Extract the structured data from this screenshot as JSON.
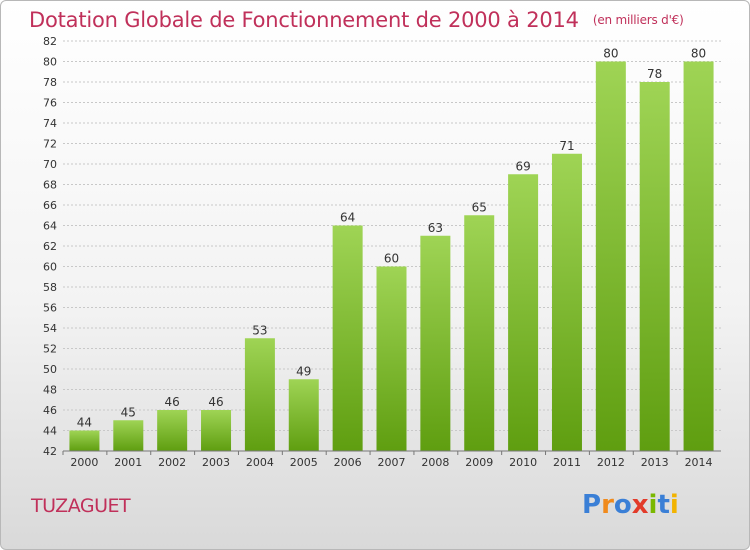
{
  "header": {
    "title": "Dotation Globale de Fonctionnement de 2000 à 2014",
    "subtitle": "(en milliers d'€)"
  },
  "footer": {
    "commune": "TUZAGUET",
    "brand": "Proxiti"
  },
  "colors": {
    "title": "#c0305a",
    "bar_top": "#9fd455",
    "bar_bottom": "#5f9e10",
    "grid": "#c8c8c8",
    "brand_letters": [
      "#3a7fd6",
      "#f08a1c",
      "#3a7fd6",
      "#e23b2a",
      "#7ab800",
      "#3a7fd6",
      "#f2b300"
    ]
  },
  "chart_data": {
    "type": "bar",
    "categories": [
      "2000",
      "2001",
      "2002",
      "2003",
      "2004",
      "2005",
      "2006",
      "2007",
      "2008",
      "2009",
      "2010",
      "2011",
      "2012",
      "2013",
      "2014"
    ],
    "values": [
      44,
      45,
      46,
      46,
      53,
      49,
      64,
      60,
      63,
      65,
      69,
      71,
      80,
      78,
      80
    ],
    "value_labels": [
      "44",
      "45",
      "46",
      "46",
      "53",
      "49",
      "64",
      "60",
      "63",
      "65",
      "69",
      "71",
      "80",
      "78",
      "80"
    ],
    "title": "Dotation Globale de Fonctionnement de 2000 à 2014",
    "subtitle": "(en milliers d'€)",
    "xlabel": "",
    "ylabel": "",
    "ylim": [
      42,
      82
    ],
    "yticks": [
      "42",
      "44",
      "46",
      "48",
      "50",
      "52",
      "54",
      "56",
      "58",
      "60",
      "62",
      "64",
      "66",
      "68",
      "70",
      "72",
      "74",
      "76",
      "78",
      "80",
      "82"
    ],
    "grid": true,
    "legend": "none"
  }
}
